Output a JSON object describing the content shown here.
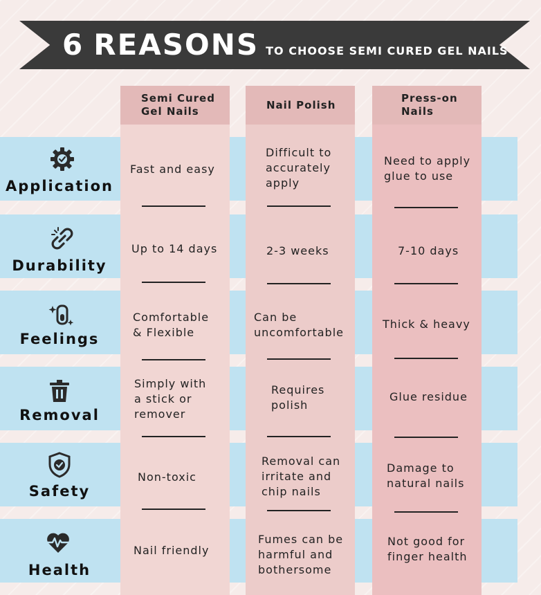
{
  "banner": {
    "number": "6",
    "headline": "REASONS",
    "subline": "TO CHOOSE SEMI CURED GEL NAILS"
  },
  "colors": {
    "banner": "#3a3a3a",
    "band": "#bfe2f1",
    "col_semi": "#f1d6d3",
    "col_polish": "#ecccca",
    "col_press": "#ebbfc0",
    "header_cell": "#e3b9b8"
  },
  "columns": [
    {
      "label": "Semi Cured\nGel Nails"
    },
    {
      "label": "Nail Polish"
    },
    {
      "label": "Press-on\nNails"
    }
  ],
  "rows": [
    {
      "label": "Application",
      "icon": "gear-check-icon",
      "cells": [
        "Fast and easy",
        "Difficult to\naccurately\napply",
        "Need to apply\nglue to use"
      ]
    },
    {
      "label": "Durability",
      "icon": "chain-link-icon",
      "cells": [
        "Up to 14 days",
        "2-3 weeks",
        "7-10 days"
      ]
    },
    {
      "label": "Feelings",
      "icon": "sparkle-nail-icon",
      "cells": [
        "Comfortable\n& Flexible",
        "Can be\nuncomfortable",
        "Thick & heavy"
      ]
    },
    {
      "label": "Removal",
      "icon": "trash-icon",
      "cells": [
        "Simply with\na stick or\nremover",
        "Requires\npolish",
        "Glue residue"
      ]
    },
    {
      "label": "Safety",
      "icon": "shield-check-icon",
      "cells": [
        "Non-toxic",
        "Removal can\nirritate and\nchip nails",
        "Damage to\nnatural nails"
      ]
    },
    {
      "label": "Health",
      "icon": "heart-pulse-icon",
      "cells": [
        "Nail friendly",
        "Fumes can be\nharmful and\nbothersome",
        "Not good for\nfinger health"
      ]
    }
  ]
}
